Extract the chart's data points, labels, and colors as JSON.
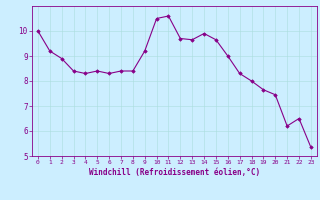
{
  "x": [
    0,
    1,
    2,
    3,
    4,
    5,
    6,
    7,
    8,
    9,
    10,
    11,
    12,
    13,
    14,
    15,
    16,
    17,
    18,
    19,
    20,
    21,
    22,
    23
  ],
  "y": [
    10.0,
    9.2,
    8.9,
    8.4,
    8.3,
    8.4,
    8.3,
    8.4,
    8.4,
    9.2,
    10.5,
    10.6,
    9.7,
    9.65,
    9.9,
    9.65,
    9.0,
    8.3,
    8.0,
    7.65,
    7.45,
    6.2,
    6.5,
    5.35
  ],
  "line_color": "#880088",
  "marker": "D",
  "marker_size": 1.8,
  "bg_color": "#cceeff",
  "grid_color": "#aadddd",
  "xlabel": "Windchill (Refroidissement éolien,°C)",
  "xlabel_color": "#880088",
  "tick_color": "#880088",
  "ylim": [
    5,
    11
  ],
  "xlim": [
    -0.5,
    23.5
  ],
  "yticks": [
    5,
    6,
    7,
    8,
    9,
    10
  ],
  "xticks": [
    0,
    1,
    2,
    3,
    4,
    5,
    6,
    7,
    8,
    9,
    10,
    11,
    12,
    13,
    14,
    15,
    16,
    17,
    18,
    19,
    20,
    21,
    22,
    23
  ],
  "line_width": 0.8,
  "figsize": [
    3.2,
    2.0
  ],
  "dpi": 100
}
